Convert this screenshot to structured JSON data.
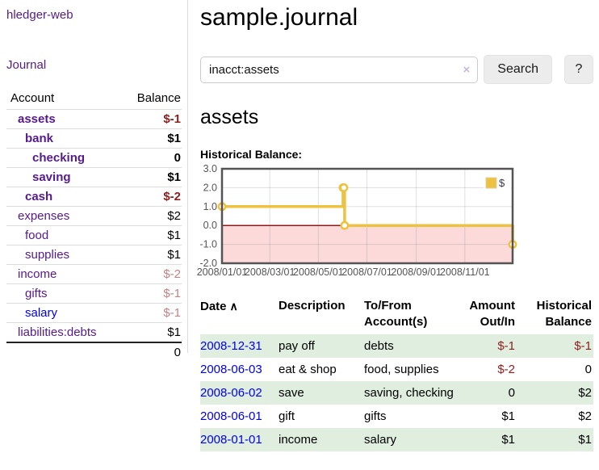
{
  "app": {
    "brand": "hledger-web",
    "nav_journal": "Journal"
  },
  "sidebar": {
    "header": {
      "account": "Account",
      "balance": "Balance"
    },
    "accounts": [
      {
        "name": "assets",
        "level": 1,
        "bold": true,
        "balance": "$-1",
        "balance_class": "neg"
      },
      {
        "name": "bank",
        "level": 2,
        "bold": true,
        "balance": "$1",
        "balance_class": ""
      },
      {
        "name": "checking",
        "level": 3,
        "bold": true,
        "balance": "0",
        "balance_class": ""
      },
      {
        "name": "saving",
        "level": 3,
        "bold": true,
        "balance": "$1",
        "balance_class": ""
      },
      {
        "name": "cash",
        "level": 2,
        "bold": true,
        "balance": "$-2",
        "balance_class": "neg"
      },
      {
        "name": "expenses",
        "level": 1,
        "bold": false,
        "balance": "$2",
        "balance_class": ""
      },
      {
        "name": "food",
        "level": 2,
        "bold": false,
        "balance": "$1",
        "balance_class": ""
      },
      {
        "name": "supplies",
        "level": 2,
        "bold": false,
        "balance": "$1",
        "balance_class": ""
      },
      {
        "name": "income",
        "level": 1,
        "bold": false,
        "balance": "$-2",
        "balance_class": "neg-dim"
      },
      {
        "name": "gifts",
        "level": 2,
        "bold": false,
        "balance": "$-1",
        "balance_class": "neg-dim"
      },
      {
        "name": "salary",
        "level": 2,
        "bold": false,
        "balance": "$-1",
        "balance_class": "neg-dim",
        "unvisited": true
      },
      {
        "name": "liabilities:debts",
        "level": 1,
        "bold": false,
        "balance": "$1",
        "balance_class": ""
      }
    ],
    "total": "0"
  },
  "header": {
    "title": "sample.journal"
  },
  "search": {
    "value": "inacct:assets",
    "clear_icon": "×",
    "button_label": "Search",
    "help_label": "?"
  },
  "account_page": {
    "heading": "assets",
    "chart_title": "Historical Balance:"
  },
  "chart_data": {
    "type": "line",
    "step": true,
    "series": [
      {
        "name": "$",
        "color": "#edc240",
        "points": [
          [
            "2008-01-01",
            1
          ],
          [
            "2008-06-01",
            2
          ],
          [
            "2008-06-02",
            2
          ],
          [
            "2008-06-03",
            0
          ],
          [
            "2008-12-31",
            -1
          ]
        ]
      }
    ],
    "xlim": [
      "2008-01-01",
      "2008-12-31"
    ],
    "ylim": [
      -2,
      3
    ],
    "x_ticks": [
      "2008/01/01",
      "2008/03/01",
      "2008/05/01",
      "2008/07/01",
      "2008/09/01",
      "2008/11/01"
    ],
    "y_ticks": [
      3,
      2,
      1,
      0,
      -1,
      -2
    ],
    "grid": true,
    "legend_position": "top-right",
    "negative_region_color": "#fcdada",
    "zero_line_color": "#8b1a1a",
    "border_color": "#545454",
    "tick_label_color": "#545454"
  },
  "register": {
    "headers": {
      "date": "Date",
      "sort_icon": "∧",
      "description": "Description",
      "accounts": "To/From Account(s)",
      "amount": "Amount Out/In",
      "balance": "Historical Balance"
    },
    "rows": [
      {
        "date": "2008-12-31",
        "description": "pay off",
        "accounts": "debts",
        "amount": "$-1",
        "amount_class": "neg",
        "balance": "$-1",
        "balance_class": "neg",
        "stripe": true
      },
      {
        "date": "2008-06-03",
        "description": "eat & shop",
        "accounts": "food, supplies",
        "amount": "$-2",
        "amount_class": "neg",
        "balance": "0",
        "balance_class": "",
        "stripe": false
      },
      {
        "date": "2008-06-02",
        "description": "save",
        "accounts": "saving, checking",
        "amount": "0",
        "amount_class": "",
        "balance": "$2",
        "balance_class": "",
        "stripe": true
      },
      {
        "date": "2008-06-01",
        "description": "gift",
        "accounts": "gifts",
        "amount": "$1",
        "amount_class": "",
        "balance": "$2",
        "balance_class": "",
        "stripe": false
      },
      {
        "date": "2008-01-01",
        "description": "income",
        "accounts": "salary",
        "amount": "$1",
        "amount_class": "",
        "balance": "$1",
        "balance_class": "",
        "stripe": true
      }
    ]
  }
}
